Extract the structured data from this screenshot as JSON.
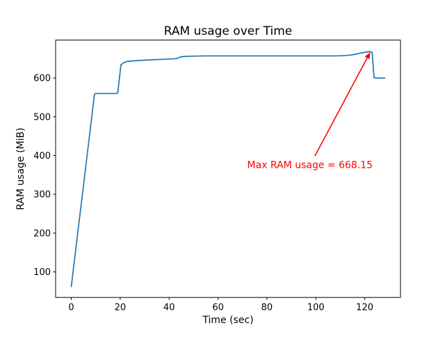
{
  "chart_data": {
    "type": "line",
    "title": "RAM usage over Time",
    "xlabel": "Time (sec)",
    "ylabel": "RAM usage (MiB)",
    "xlim": [
      -6.4,
      134.6
    ],
    "ylim": [
      34,
      698
    ],
    "x_ticks": [
      0,
      20,
      40,
      60,
      80,
      100,
      120
    ],
    "y_ticks": [
      100,
      200,
      300,
      400,
      500,
      600
    ],
    "grid": false,
    "legend": "none",
    "line_color": "#1f77b4",
    "background_color": "#ffffff",
    "series": [
      {
        "name": "RAM usage",
        "points": [
          [
            0,
            62
          ],
          [
            9.5,
            558
          ],
          [
            10,
            560
          ],
          [
            18.5,
            560
          ],
          [
            19,
            562
          ],
          [
            20.3,
            634
          ],
          [
            21.5,
            640
          ],
          [
            23,
            643
          ],
          [
            27,
            645
          ],
          [
            33,
            647
          ],
          [
            40,
            649
          ],
          [
            43,
            650
          ],
          [
            44.5,
            654
          ],
          [
            46.5,
            656
          ],
          [
            55,
            657
          ],
          [
            70,
            657
          ],
          [
            85,
            657
          ],
          [
            100,
            657
          ],
          [
            108,
            657
          ],
          [
            112,
            658
          ],
          [
            115,
            660
          ],
          [
            118,
            664
          ],
          [
            121,
            667.5
          ],
          [
            122,
            668.15
          ],
          [
            123,
            667
          ],
          [
            123.8,
            601
          ],
          [
            124.5,
            600
          ],
          [
            128.2,
            600
          ]
        ]
      }
    ],
    "annotation": {
      "text": "Max RAM usage = 668.15",
      "color": "#ff0000",
      "max_value": 668.15,
      "arrow_head": [
        122.1,
        665
      ],
      "arrow_tail": [
        99.6,
        399
      ],
      "text_center": [
        97.6,
        376.5
      ]
    }
  }
}
